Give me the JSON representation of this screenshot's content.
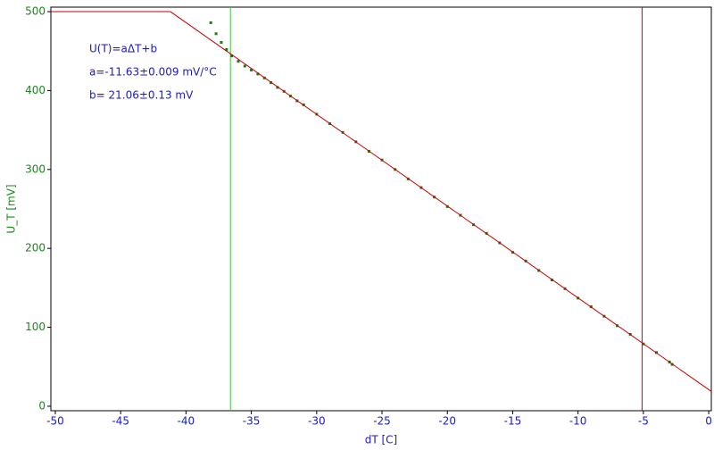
{
  "chart_data": {
    "type": "scatter",
    "x_label": "dT [C]",
    "y_label": "U_T [mV]",
    "xlim": [
      -50.34,
      0.2
    ],
    "ylim": [
      -5.7,
      505.7
    ],
    "xticks": [
      -50,
      -45,
      -40,
      -35,
      -30,
      -25,
      -20,
      -15,
      -10,
      -5,
      0
    ],
    "yticks": [
      0,
      100,
      200,
      300,
      400,
      500
    ],
    "x_axis_color": "#1a1acc",
    "y_axis_color": "#1a8a1a",
    "annotations": [
      "U(T)=aΔT+b",
      "a=-11.63±0.009 mV/°C",
      "b= 21.06±0.13 mV"
    ],
    "annotation_color": "#1a1acc",
    "cursors": [
      {
        "x": -36.6,
        "color": "#33cc33"
      },
      {
        "x": -5.1,
        "color": "#cc0000"
      }
    ],
    "series": [
      {
        "kind": "points",
        "color": "#1a7a1a",
        "x": [
          -38.1,
          -37.7,
          -37.3,
          -36.9,
          -36.5,
          -36.0,
          -35.5,
          -35.0,
          -34.5,
          -34.0,
          -33.5,
          -33.0,
          -32.5,
          -32.0,
          -31.5,
          -31.0,
          -30.0,
          -29.0,
          -28.0,
          -27.0,
          -26.0,
          -25.0,
          -24.0,
          -23.0,
          -22.0,
          -21.0,
          -20.0,
          -19.0,
          -18.0,
          -17.0,
          -16.0,
          -15.0,
          -14.0,
          -13.0,
          -12.0,
          -11.0,
          -10.0,
          -9.0,
          -8.0,
          -7.0,
          -6.0,
          -5.0,
          -4.0,
          -3.0,
          -2.8
        ],
        "values": [
          486,
          472,
          461,
          452,
          444,
          437,
          431,
          426,
          421,
          416,
          410,
          404,
          399,
          393,
          387,
          382,
          370,
          358,
          347,
          335,
          323,
          312,
          300,
          288,
          277,
          265,
          253,
          242,
          230,
          219,
          207,
          195,
          184,
          172,
          160,
          149,
          137,
          126,
          114,
          102,
          91,
          79,
          68,
          56,
          53
        ]
      },
      {
        "kind": "line",
        "color": "#cc0000",
        "x": [
          -50.34,
          -41.19,
          0.2
        ],
        "values": [
          500,
          500,
          18.7
        ]
      }
    ]
  }
}
